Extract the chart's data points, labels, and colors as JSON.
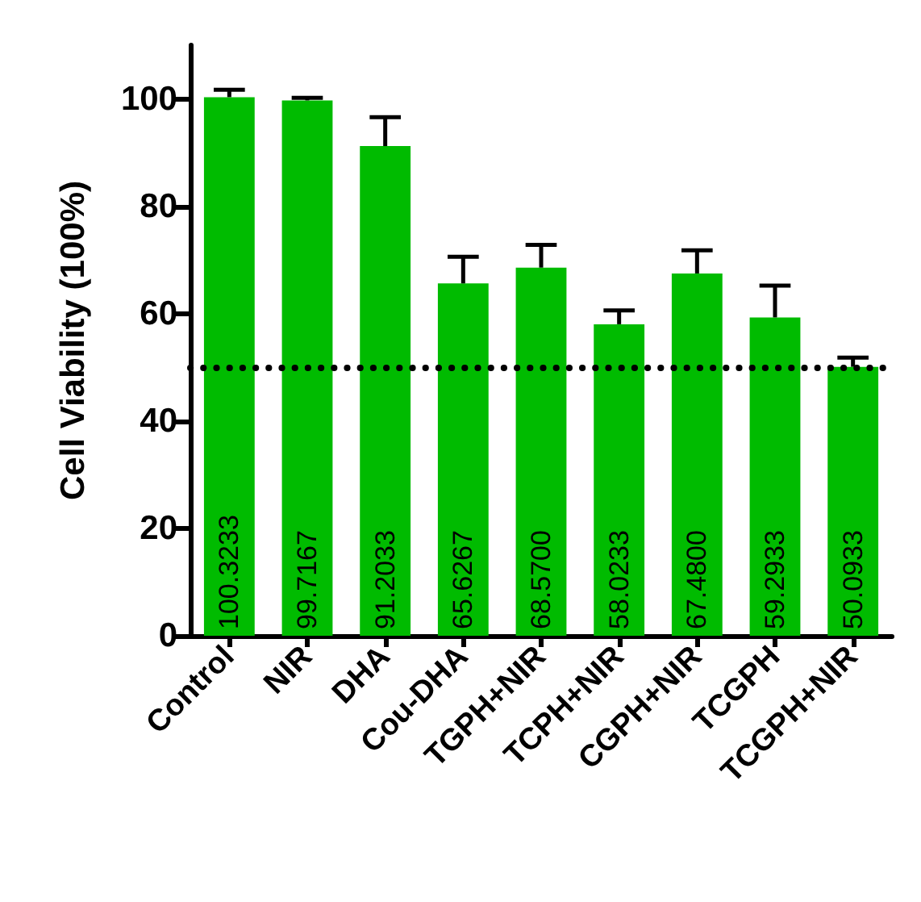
{
  "chart_data": {
    "type": "bar",
    "ylabel": "Cell Viability (100%)",
    "categories": [
      "Control",
      "NIR",
      "DHA",
      "Cou-DHA",
      "TGPH+NIR",
      "TCPH+NIR",
      "CGPH+NIR",
      "TCGPH",
      "TCGPH+NIR"
    ],
    "values": [
      100.3233,
      99.7167,
      91.2033,
      65.6267,
      68.57,
      58.0233,
      67.48,
      59.2933,
      50.0933
    ],
    "value_labels": [
      "100.3233",
      "99.7167",
      "91.2033",
      "65.6267",
      "68.5700",
      "58.0233",
      "67.4800",
      "59.2933",
      "50.0933"
    ],
    "errors": [
      [
        100.3233,
        101.7
      ],
      [
        99.7167,
        100.2
      ],
      [
        91.2033,
        96.6
      ],
      [
        65.6267,
        70.6
      ],
      [
        68.57,
        72.8
      ],
      [
        58.0233,
        60.6
      ],
      [
        67.48,
        71.8
      ],
      [
        59.2933,
        65.2
      ],
      [
        50.0933,
        51.8
      ]
    ],
    "color": "#00bb00",
    "ylim": [
      0,
      110
    ],
    "yticks": [
      0,
      20,
      40,
      60,
      80,
      100
    ],
    "ref_lines": [
      {
        "axis": "y",
        "value": 50,
        "line_style": "dotted",
        "color": "#000000"
      }
    ],
    "grid": false
  }
}
